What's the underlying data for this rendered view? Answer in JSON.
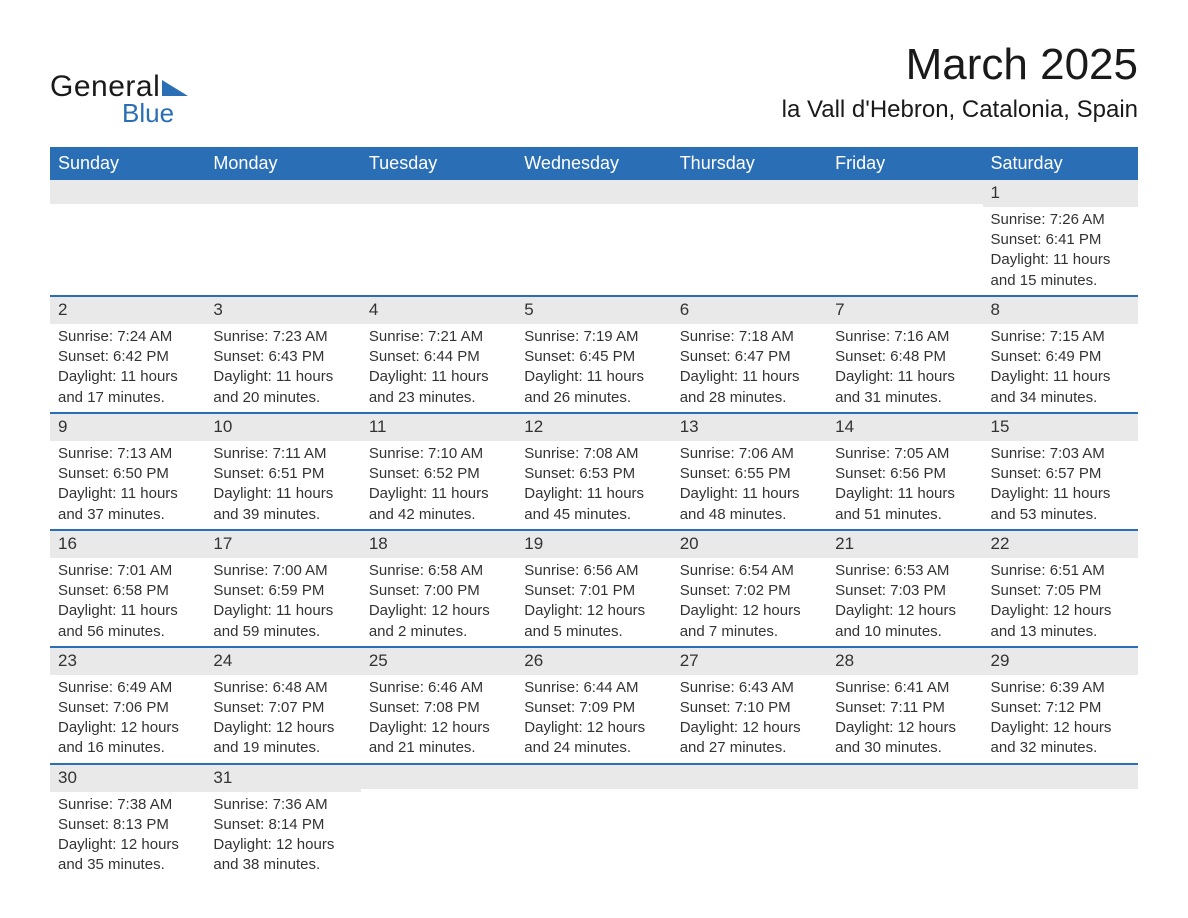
{
  "logo": {
    "text_general": "General",
    "text_blue": "Blue",
    "triangle_color": "#2a6eb5"
  },
  "header": {
    "month_title": "March 2025",
    "location": "la Vall d'Hebron, Catalonia, Spain"
  },
  "colors": {
    "header_bg": "#2a6eb5",
    "header_text": "#ffffff",
    "daynum_bg": "#e9e9e9",
    "row_divider": "#2a6eb5",
    "body_text": "#333333",
    "background": "#ffffff"
  },
  "day_headers": [
    "Sunday",
    "Monday",
    "Tuesday",
    "Wednesday",
    "Thursday",
    "Friday",
    "Saturday"
  ],
  "weeks": [
    [
      null,
      null,
      null,
      null,
      null,
      null,
      {
        "n": "1",
        "sr": "Sunrise: 7:26 AM",
        "ss": "Sunset: 6:41 PM",
        "dl1": "Daylight: 11 hours",
        "dl2": "and 15 minutes."
      }
    ],
    [
      {
        "n": "2",
        "sr": "Sunrise: 7:24 AM",
        "ss": "Sunset: 6:42 PM",
        "dl1": "Daylight: 11 hours",
        "dl2": "and 17 minutes."
      },
      {
        "n": "3",
        "sr": "Sunrise: 7:23 AM",
        "ss": "Sunset: 6:43 PM",
        "dl1": "Daylight: 11 hours",
        "dl2": "and 20 minutes."
      },
      {
        "n": "4",
        "sr": "Sunrise: 7:21 AM",
        "ss": "Sunset: 6:44 PM",
        "dl1": "Daylight: 11 hours",
        "dl2": "and 23 minutes."
      },
      {
        "n": "5",
        "sr": "Sunrise: 7:19 AM",
        "ss": "Sunset: 6:45 PM",
        "dl1": "Daylight: 11 hours",
        "dl2": "and 26 minutes."
      },
      {
        "n": "6",
        "sr": "Sunrise: 7:18 AM",
        "ss": "Sunset: 6:47 PM",
        "dl1": "Daylight: 11 hours",
        "dl2": "and 28 minutes."
      },
      {
        "n": "7",
        "sr": "Sunrise: 7:16 AM",
        "ss": "Sunset: 6:48 PM",
        "dl1": "Daylight: 11 hours",
        "dl2": "and 31 minutes."
      },
      {
        "n": "8",
        "sr": "Sunrise: 7:15 AM",
        "ss": "Sunset: 6:49 PM",
        "dl1": "Daylight: 11 hours",
        "dl2": "and 34 minutes."
      }
    ],
    [
      {
        "n": "9",
        "sr": "Sunrise: 7:13 AM",
        "ss": "Sunset: 6:50 PM",
        "dl1": "Daylight: 11 hours",
        "dl2": "and 37 minutes."
      },
      {
        "n": "10",
        "sr": "Sunrise: 7:11 AM",
        "ss": "Sunset: 6:51 PM",
        "dl1": "Daylight: 11 hours",
        "dl2": "and 39 minutes."
      },
      {
        "n": "11",
        "sr": "Sunrise: 7:10 AM",
        "ss": "Sunset: 6:52 PM",
        "dl1": "Daylight: 11 hours",
        "dl2": "and 42 minutes."
      },
      {
        "n": "12",
        "sr": "Sunrise: 7:08 AM",
        "ss": "Sunset: 6:53 PM",
        "dl1": "Daylight: 11 hours",
        "dl2": "and 45 minutes."
      },
      {
        "n": "13",
        "sr": "Sunrise: 7:06 AM",
        "ss": "Sunset: 6:55 PM",
        "dl1": "Daylight: 11 hours",
        "dl2": "and 48 minutes."
      },
      {
        "n": "14",
        "sr": "Sunrise: 7:05 AM",
        "ss": "Sunset: 6:56 PM",
        "dl1": "Daylight: 11 hours",
        "dl2": "and 51 minutes."
      },
      {
        "n": "15",
        "sr": "Sunrise: 7:03 AM",
        "ss": "Sunset: 6:57 PM",
        "dl1": "Daylight: 11 hours",
        "dl2": "and 53 minutes."
      }
    ],
    [
      {
        "n": "16",
        "sr": "Sunrise: 7:01 AM",
        "ss": "Sunset: 6:58 PM",
        "dl1": "Daylight: 11 hours",
        "dl2": "and 56 minutes."
      },
      {
        "n": "17",
        "sr": "Sunrise: 7:00 AM",
        "ss": "Sunset: 6:59 PM",
        "dl1": "Daylight: 11 hours",
        "dl2": "and 59 minutes."
      },
      {
        "n": "18",
        "sr": "Sunrise: 6:58 AM",
        "ss": "Sunset: 7:00 PM",
        "dl1": "Daylight: 12 hours",
        "dl2": "and 2 minutes."
      },
      {
        "n": "19",
        "sr": "Sunrise: 6:56 AM",
        "ss": "Sunset: 7:01 PM",
        "dl1": "Daylight: 12 hours",
        "dl2": "and 5 minutes."
      },
      {
        "n": "20",
        "sr": "Sunrise: 6:54 AM",
        "ss": "Sunset: 7:02 PM",
        "dl1": "Daylight: 12 hours",
        "dl2": "and 7 minutes."
      },
      {
        "n": "21",
        "sr": "Sunrise: 6:53 AM",
        "ss": "Sunset: 7:03 PM",
        "dl1": "Daylight: 12 hours",
        "dl2": "and 10 minutes."
      },
      {
        "n": "22",
        "sr": "Sunrise: 6:51 AM",
        "ss": "Sunset: 7:05 PM",
        "dl1": "Daylight: 12 hours",
        "dl2": "and 13 minutes."
      }
    ],
    [
      {
        "n": "23",
        "sr": "Sunrise: 6:49 AM",
        "ss": "Sunset: 7:06 PM",
        "dl1": "Daylight: 12 hours",
        "dl2": "and 16 minutes."
      },
      {
        "n": "24",
        "sr": "Sunrise: 6:48 AM",
        "ss": "Sunset: 7:07 PM",
        "dl1": "Daylight: 12 hours",
        "dl2": "and 19 minutes."
      },
      {
        "n": "25",
        "sr": "Sunrise: 6:46 AM",
        "ss": "Sunset: 7:08 PM",
        "dl1": "Daylight: 12 hours",
        "dl2": "and 21 minutes."
      },
      {
        "n": "26",
        "sr": "Sunrise: 6:44 AM",
        "ss": "Sunset: 7:09 PM",
        "dl1": "Daylight: 12 hours",
        "dl2": "and 24 minutes."
      },
      {
        "n": "27",
        "sr": "Sunrise: 6:43 AM",
        "ss": "Sunset: 7:10 PM",
        "dl1": "Daylight: 12 hours",
        "dl2": "and 27 minutes."
      },
      {
        "n": "28",
        "sr": "Sunrise: 6:41 AM",
        "ss": "Sunset: 7:11 PM",
        "dl1": "Daylight: 12 hours",
        "dl2": "and 30 minutes."
      },
      {
        "n": "29",
        "sr": "Sunrise: 6:39 AM",
        "ss": "Sunset: 7:12 PM",
        "dl1": "Daylight: 12 hours",
        "dl2": "and 32 minutes."
      }
    ],
    [
      {
        "n": "30",
        "sr": "Sunrise: 7:38 AM",
        "ss": "Sunset: 8:13 PM",
        "dl1": "Daylight: 12 hours",
        "dl2": "and 35 minutes."
      },
      {
        "n": "31",
        "sr": "Sunrise: 7:36 AM",
        "ss": "Sunset: 8:14 PM",
        "dl1": "Daylight: 12 hours",
        "dl2": "and 38 minutes."
      },
      null,
      null,
      null,
      null,
      null
    ]
  ]
}
